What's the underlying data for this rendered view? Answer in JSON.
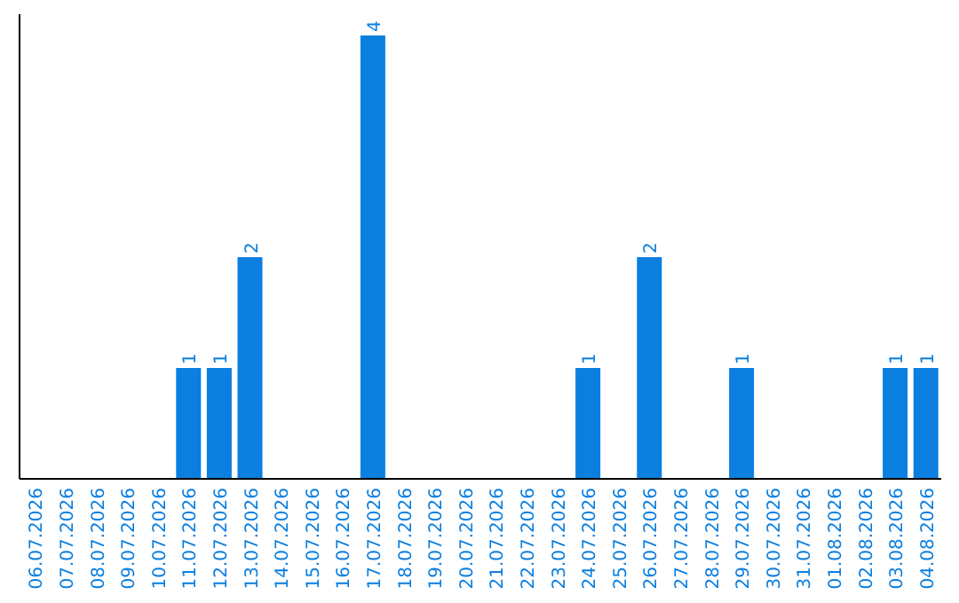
{
  "chart_data": {
    "type": "bar",
    "categories": [
      "06.07.2026",
      "07.07.2026",
      "08.07.2026",
      "09.07.2026",
      "10.07.2026",
      "11.07.2026",
      "12.07.2026",
      "13.07.2026",
      "14.07.2026",
      "15.07.2026",
      "16.07.2026",
      "17.07.2026",
      "18.07.2026",
      "19.07.2026",
      "20.07.2026",
      "21.07.2026",
      "22.07.2026",
      "23.07.2026",
      "24.07.2026",
      "25.07.2026",
      "26.07.2026",
      "27.07.2026",
      "28.07.2026",
      "29.07.2026",
      "30.07.2026",
      "31.07.2026",
      "01.08.2026",
      "02.08.2026",
      "03.08.2026",
      "04.08.2026"
    ],
    "values": [
      0,
      0,
      0,
      0,
      0,
      1,
      1,
      2,
      0,
      0,
      0,
      4,
      0,
      0,
      0,
      0,
      0,
      0,
      1,
      0,
      2,
      0,
      0,
      1,
      0,
      0,
      0,
      0,
      1,
      1
    ],
    "value_labels": [
      null,
      null,
      null,
      null,
      null,
      "1",
      "1",
      "2",
      null,
      null,
      null,
      "4",
      null,
      null,
      null,
      null,
      null,
      null,
      "1",
      null,
      "2",
      null,
      null,
      "1",
      null,
      null,
      null,
      null,
      "1",
      "1"
    ],
    "color": "#0a7fe0",
    "tick_labels": "x"
  }
}
